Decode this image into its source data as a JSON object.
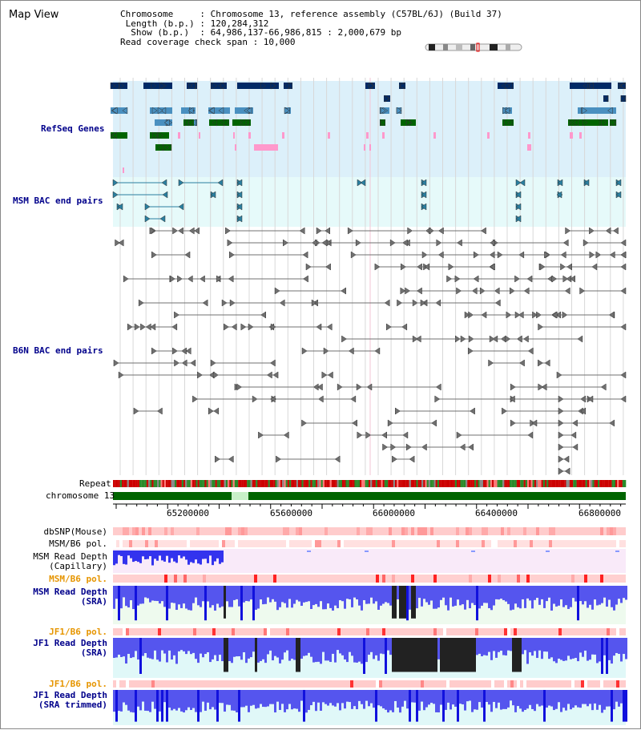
{
  "header": {
    "title": "Map View",
    "info_lines": [
      "Chromosome     : Chromosome 13, reference assembly (C57BL/6J) (Build 37)",
      " Length (b.p.) : 120,284,312",
      "  Show (b.p.)  : 64,986,137-66,986,815 : 2,000,679 bp",
      "Read coverage check span : 10,000"
    ]
  },
  "tracks": {
    "refseq": "RefSeq Genes",
    "msm_bac": "MSM BAC end pairs",
    "b6n_bac": "B6N BAC end pairs",
    "repeat": "Repeat",
    "chromosome": "chromosome 13",
    "dbsnp": "dbSNP(Mouse)",
    "msm_b6_pol_1": "MSM/B6 pol.",
    "msm_read_depth_cap": "MSM Read Depth\n(Capillary)",
    "msm_b6_pol_2": "MSM/B6 pol.",
    "msm_read_depth_sra": "MSM Read Depth\n(SRA)",
    "jf1_b6_pol_1": "JF1/B6 pol.",
    "jf1_read_depth_sra": "JF1 Read Depth\n(SRA)",
    "jf1_b6_pol_2": "JF1/B6 pol.",
    "jf1_read_depth_trim": "JF1 Read Depth\n(SRA trimmed)"
  },
  "axis": {
    "ticks": [
      "65200000",
      "65600000",
      "66000000",
      "66400000",
      "66800000"
    ]
  },
  "colors": {
    "refseq_bg": "#dcf0fa",
    "msm_bac_bg": "#e6fafa",
    "dark_blue": "#002a66",
    "mid_blue": "#4a90c0",
    "green": "#006400",
    "pink": "#ff99cc",
    "teal": "#2a7fa0",
    "gray": "#707070",
    "chrom_green": "#006400",
    "depth_blue": "#5555ee"
  }
}
